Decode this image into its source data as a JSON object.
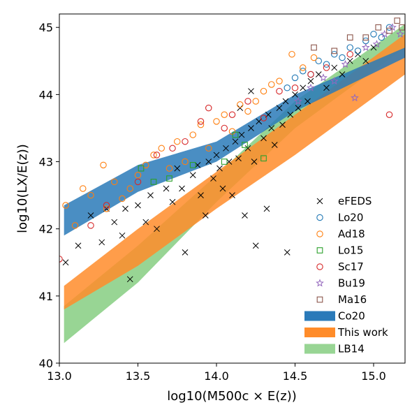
{
  "chart_data": {
    "type": "scatter",
    "xlabel": "log10(M500c × E(z))",
    "ylabel": "log10(LX/E(z))",
    "xlim": [
      13.0,
      15.2
    ],
    "ylim": [
      40.0,
      45.2
    ],
    "x_ticks": [
      "13.0",
      "13.5",
      "14.0",
      "14.5",
      "15.0"
    ],
    "y_ticks": [
      "40",
      "41",
      "42",
      "43",
      "44",
      "45"
    ],
    "grid": false,
    "legend_position": "lower-right",
    "bands": [
      {
        "name": "LB14",
        "color": "#98d594",
        "x": [
          13.03,
          13.5,
          14.0,
          14.5,
          15.2
        ],
        "lower": [
          40.3,
          41.2,
          42.4,
          43.5,
          44.7
        ],
        "upper": [
          40.85,
          41.75,
          42.8,
          43.9,
          45.05
        ]
      },
      {
        "name": "This work",
        "color": "#ff8c2a",
        "x": [
          13.03,
          13.5,
          14.0,
          14.5,
          15.2
        ],
        "lower": [
          40.8,
          41.45,
          42.3,
          43.1,
          44.3
        ],
        "upper": [
          41.15,
          42.0,
          42.85,
          43.7,
          44.9
        ]
      },
      {
        "name": "Co20",
        "color": "#2a7ab9",
        "x": [
          13.03,
          13.5,
          14.0,
          14.5,
          15.2
        ],
        "lower": [
          41.9,
          42.55,
          43.0,
          43.75,
          44.55
        ],
        "upper": [
          42.35,
          42.95,
          43.3,
          44.0,
          44.7
        ]
      }
    ],
    "series": [
      {
        "name": "eFEDS",
        "marker": "x",
        "color": "#000000",
        "points": [
          [
            13.04,
            41.5
          ],
          [
            13.12,
            41.75
          ],
          [
            13.2,
            42.2
          ],
          [
            13.27,
            41.8
          ],
          [
            13.3,
            42.3
          ],
          [
            13.35,
            42.1
          ],
          [
            13.4,
            41.9
          ],
          [
            13.42,
            42.3
          ],
          [
            13.45,
            41.25
          ],
          [
            13.5,
            42.35
          ],
          [
            13.55,
            42.1
          ],
          [
            13.58,
            42.5
          ],
          [
            13.62,
            42.0
          ],
          [
            13.68,
            42.6
          ],
          [
            13.72,
            42.4
          ],
          [
            13.75,
            42.9
          ],
          [
            13.78,
            42.6
          ],
          [
            13.8,
            41.65
          ],
          [
            13.85,
            42.8
          ],
          [
            13.88,
            42.95
          ],
          [
            13.9,
            42.5
          ],
          [
            13.93,
            42.2
          ],
          [
            13.95,
            43.0
          ],
          [
            13.98,
            42.75
          ],
          [
            14.0,
            43.1
          ],
          [
            14.02,
            42.9
          ],
          [
            14.04,
            42.6
          ],
          [
            14.06,
            43.2
          ],
          [
            14.08,
            43.0
          ],
          [
            14.1,
            42.5
          ],
          [
            14.12,
            43.3
          ],
          [
            14.14,
            43.05
          ],
          [
            14.16,
            43.4
          ],
          [
            14.18,
            42.2
          ],
          [
            14.2,
            43.2
          ],
          [
            14.22,
            43.5
          ],
          [
            14.24,
            43.0
          ],
          [
            14.25,
            41.75
          ],
          [
            14.27,
            43.6
          ],
          [
            14.3,
            43.35
          ],
          [
            14.32,
            42.3
          ],
          [
            14.33,
            43.7
          ],
          [
            14.35,
            43.5
          ],
          [
            14.37,
            43.25
          ],
          [
            14.4,
            43.8
          ],
          [
            14.42,
            43.55
          ],
          [
            14.44,
            43.9
          ],
          [
            14.45,
            41.65
          ],
          [
            14.47,
            43.7
          ],
          [
            14.5,
            44.0
          ],
          [
            14.52,
            43.8
          ],
          [
            14.55,
            44.1
          ],
          [
            14.58,
            43.9
          ],
          [
            14.6,
            44.2
          ],
          [
            14.65,
            44.3
          ],
          [
            14.7,
            44.1
          ],
          [
            14.75,
            44.4
          ],
          [
            14.8,
            44.3
          ],
          [
            14.85,
            44.5
          ],
          [
            14.9,
            44.6
          ],
          [
            14.95,
            44.5
          ],
          [
            15.0,
            44.7
          ],
          [
            14.22,
            44.05
          ],
          [
            14.15,
            43.8
          ]
        ]
      },
      {
        "name": "Lo20",
        "marker": "o",
        "color": "#1f77b4",
        "points": [
          [
            14.45,
            44.1
          ],
          [
            14.5,
            44.25
          ],
          [
            14.55,
            44.35
          ],
          [
            14.6,
            44.3
          ],
          [
            14.65,
            44.5
          ],
          [
            14.7,
            44.45
          ],
          [
            14.75,
            44.6
          ],
          [
            14.8,
            44.55
          ],
          [
            14.85,
            44.7
          ],
          [
            14.9,
            44.65
          ],
          [
            14.95,
            44.8
          ],
          [
            15.0,
            44.9
          ],
          [
            15.05,
            44.85
          ],
          [
            15.1,
            45.0
          ]
        ]
      },
      {
        "name": "Ad18",
        "marker": "o",
        "color": "#ff7f0e",
        "points": [
          [
            13.04,
            42.35
          ],
          [
            13.1,
            42.05
          ],
          [
            13.15,
            42.6
          ],
          [
            13.2,
            42.5
          ],
          [
            13.28,
            42.95
          ],
          [
            13.3,
            42.3
          ],
          [
            13.35,
            42.7
          ],
          [
            13.4,
            42.45
          ],
          [
            13.45,
            42.6
          ],
          [
            13.5,
            42.8
          ],
          [
            13.55,
            42.95
          ],
          [
            13.6,
            43.1
          ],
          [
            13.65,
            43.2
          ],
          [
            13.7,
            42.9
          ],
          [
            13.75,
            43.3
          ],
          [
            13.8,
            43.0
          ],
          [
            13.85,
            43.4
          ],
          [
            13.9,
            43.55
          ],
          [
            13.95,
            43.2
          ],
          [
            14.0,
            43.6
          ],
          [
            14.05,
            43.7
          ],
          [
            14.1,
            43.45
          ],
          [
            14.15,
            43.85
          ],
          [
            14.2,
            43.75
          ],
          [
            14.25,
            43.9
          ],
          [
            14.3,
            44.05
          ],
          [
            14.35,
            44.15
          ],
          [
            14.4,
            44.2
          ],
          [
            14.48,
            44.6
          ],
          [
            14.55,
            44.4
          ],
          [
            14.62,
            44.55
          ]
        ]
      },
      {
        "name": "Lo15",
        "marker": "s",
        "color": "#2ca02c",
        "points": [
          [
            13.52,
            42.9
          ],
          [
            13.6,
            42.7
          ],
          [
            13.7,
            42.75
          ],
          [
            13.85,
            42.95
          ],
          [
            14.05,
            43.0
          ],
          [
            14.12,
            43.4
          ],
          [
            14.18,
            43.25
          ],
          [
            14.3,
            43.05
          ]
        ]
      },
      {
        "name": "Sc17",
        "marker": "o",
        "color": "#d62728",
        "points": [
          [
            13.0,
            41.55
          ],
          [
            13.2,
            42.05
          ],
          [
            13.3,
            42.35
          ],
          [
            13.5,
            42.7
          ],
          [
            13.62,
            43.1
          ],
          [
            13.72,
            43.2
          ],
          [
            13.8,
            43.3
          ],
          [
            13.9,
            43.6
          ],
          [
            13.95,
            43.8
          ],
          [
            14.05,
            43.5
          ],
          [
            14.1,
            43.7
          ],
          [
            14.2,
            43.9
          ],
          [
            14.3,
            43.65
          ],
          [
            14.4,
            44.05
          ],
          [
            14.5,
            44.1
          ],
          [
            14.6,
            44.3
          ],
          [
            14.7,
            44.4
          ],
          [
            14.85,
            44.6
          ],
          [
            15.1,
            43.7
          ]
        ]
      },
      {
        "name": "Bu19",
        "marker": "*",
        "color": "#9467bd",
        "points": [
          [
            14.52,
            43.9
          ],
          [
            14.6,
            44.1
          ],
          [
            14.68,
            44.25
          ],
          [
            14.75,
            44.2
          ],
          [
            14.82,
            44.45
          ],
          [
            14.88,
            43.95
          ],
          [
            14.95,
            44.7
          ],
          [
            15.02,
            44.75
          ],
          [
            15.07,
            44.9
          ],
          [
            15.12,
            45.0
          ],
          [
            15.17,
            44.9
          ]
        ]
      },
      {
        "name": "Ma16",
        "marker": "s",
        "color": "#8c564b",
        "points": [
          [
            14.62,
            44.7
          ],
          [
            14.75,
            44.65
          ],
          [
            14.85,
            44.85
          ],
          [
            14.95,
            44.85
          ],
          [
            15.03,
            45.0
          ],
          [
            15.1,
            44.95
          ],
          [
            15.15,
            45.1
          ],
          [
            15.18,
            45.0
          ]
        ]
      }
    ],
    "legend": [
      {
        "label": "eFEDS",
        "kind": "x",
        "color": "#000000"
      },
      {
        "label": "Lo20",
        "kind": "circle",
        "color": "#1f77b4"
      },
      {
        "label": "Ad18",
        "kind": "circle",
        "color": "#ff7f0e"
      },
      {
        "label": "Lo15",
        "kind": "square",
        "color": "#2ca02c"
      },
      {
        "label": "Sc17",
        "kind": "circle",
        "color": "#d62728"
      },
      {
        "label": "Bu19",
        "kind": "star",
        "color": "#9467bd"
      },
      {
        "label": "Ma16",
        "kind": "square",
        "color": "#8c564b"
      },
      {
        "label": "Co20",
        "kind": "patch",
        "color": "#2a7ab9"
      },
      {
        "label": "This work",
        "kind": "patch",
        "color": "#ff8c2a"
      },
      {
        "label": "LB14",
        "kind": "patch",
        "color": "#98d594"
      }
    ]
  }
}
